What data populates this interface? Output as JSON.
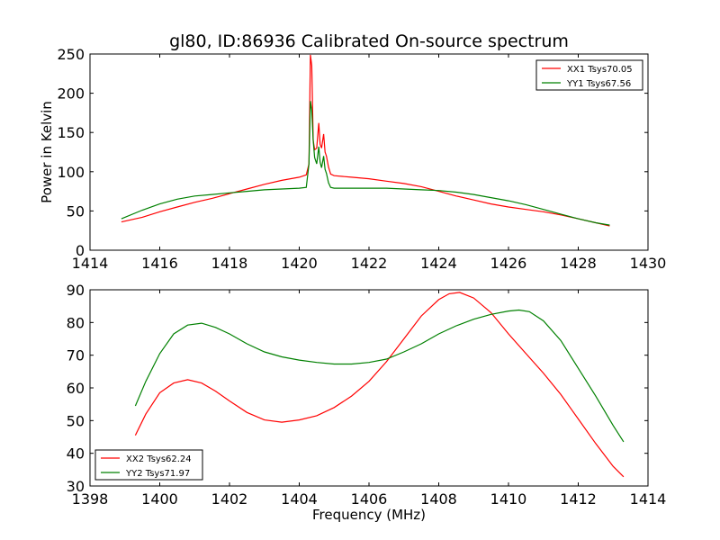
{
  "figure": {
    "title": "gl80, ID:86936 Calibrated On-source spectrum"
  },
  "colors": {
    "red": "#ff0000",
    "green": "#008000",
    "axes": "#000000",
    "background": "#ffffff"
  },
  "chart_data": [
    {
      "type": "line",
      "title": "gl80, ID:86936 Calibrated On-source spectrum",
      "xlabel": "",
      "ylabel": "Power in Kelvin",
      "xlim": [
        1414,
        1430
      ],
      "ylim": [
        0,
        250
      ],
      "xticks": [
        "1414",
        "1416",
        "1418",
        "1420",
        "1422",
        "1424",
        "1426",
        "1428",
        "1430"
      ],
      "yticks": [
        "0",
        "50",
        "100",
        "150",
        "200",
        "250"
      ],
      "grid": false,
      "legend_position": "top-right",
      "series": [
        {
          "name": "XX1 Tsys70.05",
          "color": "#ff0000",
          "x": [
            1414.9,
            1415.5,
            1416,
            1416.5,
            1417,
            1417.5,
            1418,
            1418.5,
            1419,
            1419.5,
            1420,
            1420.2,
            1420.28,
            1420.32,
            1420.36,
            1420.4,
            1420.44,
            1420.5,
            1420.56,
            1420.6,
            1420.64,
            1420.7,
            1420.74,
            1420.78,
            1420.84,
            1420.9,
            1421,
            1421.5,
            1422,
            1422.5,
            1423,
            1423.5,
            1424,
            1424.5,
            1425,
            1425.5,
            1426,
            1426.5,
            1427,
            1427.5,
            1428,
            1428.5,
            1428.9
          ],
          "y": [
            36,
            42,
            49,
            55,
            61,
            66,
            72,
            78,
            84,
            89,
            93,
            96,
            110,
            249,
            235,
            140,
            128,
            130,
            162,
            135,
            130,
            148,
            125,
            120,
            106,
            97,
            95,
            93,
            91,
            88,
            85,
            81,
            75,
            69,
            64,
            59,
            55,
            52,
            49,
            45,
            40,
            35,
            31
          ]
        },
        {
          "name": "YY1 Tsys67.56",
          "color": "#008000",
          "x": [
            1414.9,
            1415.5,
            1416,
            1416.5,
            1417,
            1417.5,
            1418,
            1418.5,
            1419,
            1419.5,
            1420,
            1420.2,
            1420.28,
            1420.32,
            1420.36,
            1420.4,
            1420.44,
            1420.5,
            1420.56,
            1420.6,
            1420.64,
            1420.7,
            1420.74,
            1420.78,
            1420.84,
            1420.9,
            1421,
            1421.5,
            1422,
            1422.5,
            1423,
            1423.5,
            1424,
            1424.5,
            1425,
            1425.5,
            1426,
            1426.5,
            1427,
            1427.5,
            1428,
            1428.5,
            1428.9
          ],
          "y": [
            40,
            51,
            59,
            65,
            69,
            71,
            73,
            75,
            77,
            78,
            79,
            80,
            110,
            190,
            178,
            140,
            118,
            110,
            132,
            112,
            105,
            120,
            103,
            98,
            86,
            80,
            79,
            79,
            79,
            79,
            78,
            77,
            76,
            74,
            71,
            67,
            63,
            58,
            52,
            46,
            40,
            35,
            32
          ]
        }
      ]
    },
    {
      "type": "line",
      "title": "",
      "xlabel": "Frequency (MHz)",
      "ylabel": "",
      "xlim": [
        1398,
        1414
      ],
      "ylim": [
        30,
        90
      ],
      "xticks": [
        "1398",
        "1400",
        "1402",
        "1404",
        "1406",
        "1408",
        "1410",
        "1412",
        "1414"
      ],
      "yticks": [
        "30",
        "40",
        "50",
        "60",
        "70",
        "80",
        "90"
      ],
      "grid": false,
      "legend_position": "bottom-left",
      "series": [
        {
          "name": "XX2 Tsys62.24",
          "color": "#ff0000",
          "x": [
            1399.3,
            1399.6,
            1400,
            1400.4,
            1400.8,
            1401.2,
            1401.6,
            1402,
            1402.5,
            1403,
            1403.5,
            1404,
            1404.5,
            1405,
            1405.5,
            1406,
            1406.5,
            1407,
            1407.5,
            1408,
            1408.3,
            1408.6,
            1409,
            1409.5,
            1410,
            1410.5,
            1411,
            1411.5,
            1412,
            1412.5,
            1413,
            1413.3
          ],
          "y": [
            45.5,
            52,
            58.5,
            61.5,
            62.5,
            61.5,
            59,
            56,
            52.5,
            50.2,
            49.5,
            50.2,
            51.5,
            54,
            57.5,
            62,
            68,
            75,
            82,
            87,
            88.8,
            89.2,
            87.5,
            83,
            76.5,
            70.5,
            64.5,
            58,
            50.5,
            43,
            36,
            32.8
          ]
        },
        {
          "name": "YY2 Tsys71.97",
          "color": "#008000",
          "x": [
            1399.3,
            1399.6,
            1400,
            1400.4,
            1400.8,
            1401.2,
            1401.6,
            1402,
            1402.5,
            1403,
            1403.5,
            1404,
            1404.5,
            1405,
            1405.5,
            1406,
            1406.5,
            1407,
            1407.5,
            1408,
            1408.5,
            1409,
            1409.5,
            1410,
            1410.3,
            1410.6,
            1411,
            1411.5,
            1412,
            1412.5,
            1413,
            1413.3
          ],
          "y": [
            54.5,
            62,
            70.5,
            76.5,
            79.2,
            79.8,
            78.5,
            76.5,
            73.5,
            71,
            69.5,
            68.5,
            67.8,
            67.3,
            67.3,
            67.8,
            68.8,
            71,
            73.5,
            76.5,
            79,
            81,
            82.5,
            83.5,
            83.8,
            83.3,
            80.5,
            74.5,
            66,
            57.5,
            48.5,
            43.5
          ]
        }
      ]
    }
  ]
}
